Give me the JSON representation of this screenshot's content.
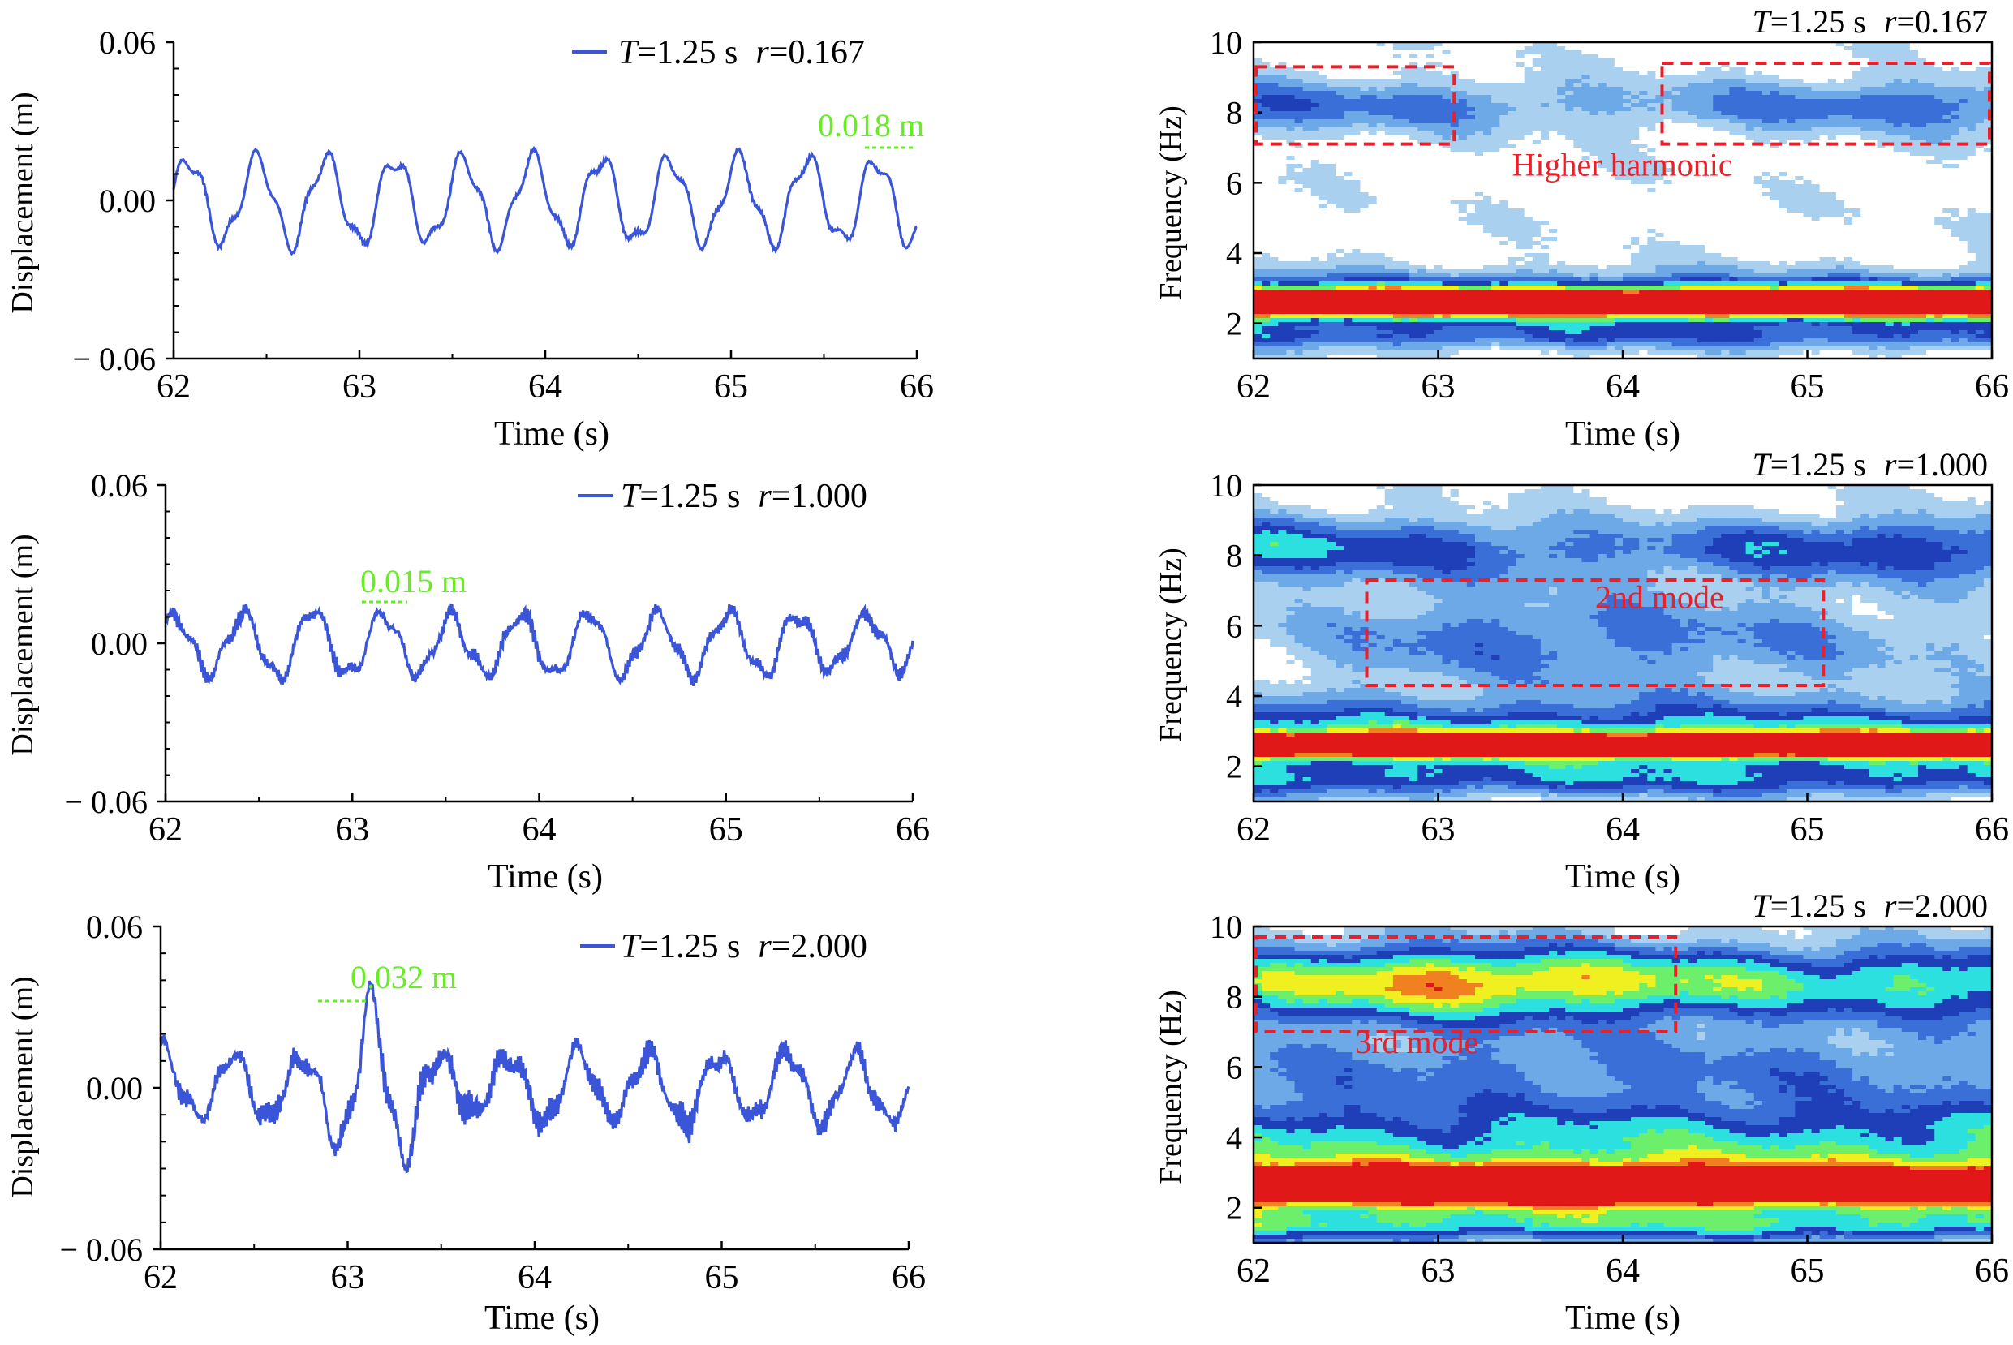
{
  "colors": {
    "series_line": "#3a55d8",
    "peak_annotation": "#66ee22",
    "mode_box": "#e8202a",
    "axis": "#000000",
    "colormap": [
      "#ffffff",
      "#a9d1ef",
      "#6da9e6",
      "#3a6fd8",
      "#1f3fb8",
      "#2de0e0",
      "#6cf06c",
      "#f0f020",
      "#f08020",
      "#e01818"
    ]
  },
  "chart_data": [
    {
      "type": "line",
      "panel": "time-history-1",
      "xlabel": "Time (s)",
      "ylabel": "Displacement (m)",
      "xlim": [
        62,
        66
      ],
      "ylim": [
        -0.06,
        0.06
      ],
      "xticks": [
        "62",
        "63",
        "64",
        "65",
        "66"
      ],
      "yticks": [
        "0.06",
        "0.00",
        "− 0.06"
      ],
      "legend": {
        "T": "T",
        "T_value": "=1.25 s",
        "r": "r",
        "r_value": "=0.167"
      },
      "peak_label": "0.018 m",
      "peak_at": {
        "x": 65.83,
        "y": 0.018
      },
      "signal": {
        "period": 0.37,
        "amp": 0.0155,
        "phase": 0.2,
        "seed": 3,
        "noise": 0.0008,
        "end_x": 66.0
      },
      "series": [
        {
          "name": "T=1.25 s  r=0.167"
        }
      ]
    },
    {
      "type": "line",
      "panel": "time-history-2",
      "xlabel": "Time (s)",
      "ylabel": "Displacement (m)",
      "xlim": [
        62,
        66
      ],
      "ylim": [
        -0.06,
        0.06
      ],
      "xticks": [
        "62",
        "63",
        "64",
        "65",
        "66"
      ],
      "yticks": [
        "0.06",
        "0.00",
        "− 0.06"
      ],
      "legend": {
        "T": "T",
        "T_value": "=1.25 s",
        "r": "r",
        "r_value": "=1.000"
      },
      "peak_label": "0.015 m",
      "peak_at": {
        "x": 63.18,
        "y": 0.015
      },
      "signal": {
        "period": 0.37,
        "amp": 0.0105,
        "phase": 0.7,
        "seed": 7,
        "noise": 0.003,
        "end_x": 66.0
      },
      "series": [
        {
          "name": "T=1.25 s  r=1.000"
        }
      ]
    },
    {
      "type": "line",
      "panel": "time-history-3",
      "xlabel": "Time (s)",
      "ylabel": "Displacement (m)",
      "xlim": [
        62,
        66
      ],
      "ylim": [
        -0.06,
        0.06
      ],
      "xticks": [
        "62",
        "63",
        "64",
        "65",
        "66"
      ],
      "yticks": [
        "0.06",
        "0.00",
        "− 0.06"
      ],
      "legend": {
        "T": "T",
        "T_value": "=1.25 s",
        "r": "r",
        "r_value": "=2.000"
      },
      "peak_label": "0.032 m",
      "peak_at": {
        "x": 62.97,
        "y": 0.032
      },
      "signal": {
        "period": 0.37,
        "amp": 0.0115,
        "phase": 1.3,
        "seed": 11,
        "noise": 0.0045,
        "end_x": 66.0,
        "burst": {
          "x0": 62.85,
          "x1": 63.45,
          "gain": 2.6
        }
      },
      "series": [
        {
          "name": "T=1.25 s  r=2.000"
        }
      ]
    },
    {
      "type": "heatmap",
      "panel": "spectrogram-1",
      "xlabel": "Time (s)",
      "ylabel": "Frequency (Hz)",
      "xlim": [
        62,
        66
      ],
      "ylim": [
        1,
        10
      ],
      "xticks": [
        "62",
        "63",
        "64",
        "65",
        "66"
      ],
      "yticks": [
        "2",
        "4",
        "6",
        "8",
        "10"
      ],
      "title": {
        "T": "T",
        "T_value": "=1.25 s",
        "r": "r",
        "r_value": "=0.167"
      },
      "annotations": [
        {
          "label": "Higher harmonic",
          "boxes": [
            {
              "x": [
                62.0,
                63.1
              ],
              "y": [
                7.1,
                9.3
              ]
            },
            {
              "x": [
                64.2,
                66.0
              ],
              "y": [
                7.1,
                9.4
              ]
            }
          ],
          "label_at": {
            "x": 63.4,
            "y": 6.2
          }
        }
      ],
      "bands": [
        {
          "f": 2.6,
          "w": 0.28,
          "level": 9.0,
          "mod": [
            1.0,
            1.0,
            1.0,
            1.0,
            1.0
          ]
        },
        {
          "f": 2.6,
          "w": 0.55,
          "level": 5.0,
          "mod": [
            1.0,
            1.0,
            1.0,
            1.0,
            1.0
          ]
        },
        {
          "f": 1.6,
          "w": 0.25,
          "level": 2.5,
          "mod": [
            1.0,
            1.0,
            1.0,
            1.0,
            1.0
          ]
        },
        {
          "f": 8.2,
          "w": 0.55,
          "level": 3.2,
          "mod": [
            1.0,
            0.8,
            0.5,
            0.9,
            1.0
          ]
        }
      ]
    },
    {
      "type": "heatmap",
      "panel": "spectrogram-2",
      "xlabel": "Time (s)",
      "ylabel": "Frequency (Hz)",
      "xlim": [
        62,
        66
      ],
      "ylim": [
        1,
        10
      ],
      "xticks": [
        "62",
        "63",
        "64",
        "65",
        "66"
      ],
      "yticks": [
        "2",
        "4",
        "6",
        "8",
        "10"
      ],
      "title": {
        "T": "T",
        "T_value": "=1.25 s",
        "r": "r",
        "r_value": "=1.000"
      },
      "annotations": [
        {
          "label": "2nd mode",
          "boxes": [
            {
              "x": [
                62.6,
                65.1
              ],
              "y": [
                4.3,
                7.3
              ]
            }
          ],
          "label_at": {
            "x": 63.85,
            "y": 6.5
          }
        }
      ],
      "bands": [
        {
          "f": 2.6,
          "w": 0.22,
          "level": 9.5,
          "mod": [
            1.0,
            1.0,
            1.0,
            1.0,
            1.0
          ]
        },
        {
          "f": 2.8,
          "w": 0.7,
          "level": 5.5,
          "mod": [
            1.0,
            1.0,
            1.0,
            1.0,
            1.0
          ]
        },
        {
          "f": 1.6,
          "w": 0.35,
          "level": 3.0,
          "mod": [
            1.0,
            1.0,
            1.0,
            1.0,
            1.0
          ]
        },
        {
          "f": 5.6,
          "w": 1.0,
          "level": 2.8,
          "mod": [
            0.3,
            1.0,
            1.0,
            0.8,
            0.3
          ]
        },
        {
          "f": 8.2,
          "w": 0.65,
          "level": 4.0,
          "mod": [
            1.2,
            0.9,
            0.6,
            1.0,
            1.0
          ]
        }
      ]
    },
    {
      "type": "heatmap",
      "panel": "spectrogram-3",
      "xlabel": "Time (s)",
      "ylabel": "Frequency (Hz)",
      "xlim": [
        62,
        66
      ],
      "ylim": [
        1,
        10
      ],
      "xticks": [
        "62",
        "63",
        "64",
        "65",
        "66"
      ],
      "yticks": [
        "2",
        "4",
        "6",
        "8",
        "10"
      ],
      "title": {
        "T": "T",
        "T_value": "=1.25 s",
        "r": "r",
        "r_value": "=2.000"
      },
      "annotations": [
        {
          "label": "3rd mode",
          "boxes": [
            {
              "x": [
                62.0,
                64.3
              ],
              "y": [
                7.0,
                9.7
              ]
            }
          ],
          "label_at": {
            "x": 62.55,
            "y": 6.4
          }
        }
      ],
      "bands": [
        {
          "f": 2.6,
          "w": 0.35,
          "level": 9.8,
          "mod": [
            0.8,
            1.1,
            1.1,
            0.9,
            0.8
          ]
        },
        {
          "f": 2.8,
          "w": 0.85,
          "level": 6.0,
          "mod": [
            1.0,
            1.0,
            1.0,
            1.0,
            1.0
          ]
        },
        {
          "f": 1.5,
          "w": 0.3,
          "level": 3.5,
          "mod": [
            1.0,
            1.0,
            1.0,
            1.0,
            1.0
          ]
        },
        {
          "f": 4.3,
          "w": 0.7,
          "level": 3.2,
          "mod": [
            1.0,
            0.8,
            1.0,
            0.9,
            1.0
          ]
        },
        {
          "f": 6.0,
          "w": 0.8,
          "level": 2.6,
          "mod": [
            0.8,
            1.0,
            0.9,
            1.0,
            0.7
          ]
        },
        {
          "f": 8.4,
          "w": 0.75,
          "level": 5.8,
          "mod": [
            1.0,
            1.4,
            1.2,
            0.9,
            1.0
          ]
        }
      ]
    }
  ]
}
